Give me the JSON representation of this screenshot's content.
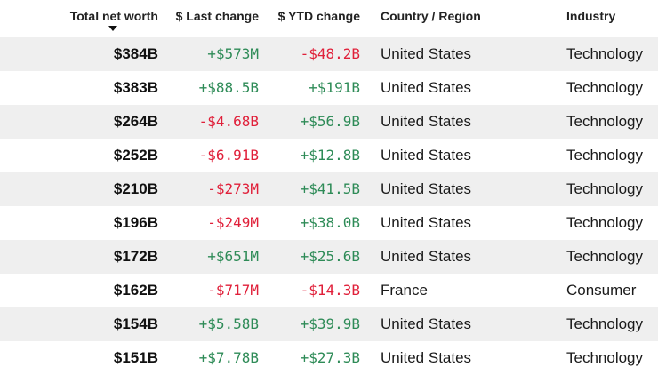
{
  "colors": {
    "positive": "#2e8b57",
    "negative": "#e0203a",
    "row_alt": "#efefef"
  },
  "header": {
    "net_worth": "Total net worth",
    "last_change": "$ Last change",
    "ytd_change": "$ YTD change",
    "country": "Country / Region",
    "industry": "Industry",
    "sort_icon": "sort-descending-icon"
  },
  "rows": [
    {
      "worth": "$384B",
      "last": "+$573M",
      "ytd": "-$48.2B",
      "country": "United States",
      "industry": "Technology"
    },
    {
      "worth": "$383B",
      "last": "+$88.5B",
      "ytd": "+$191B",
      "country": "United States",
      "industry": "Technology"
    },
    {
      "worth": "$264B",
      "last": "-$4.68B",
      "ytd": "+$56.9B",
      "country": "United States",
      "industry": "Technology"
    },
    {
      "worth": "$252B",
      "last": "-$6.91B",
      "ytd": "+$12.8B",
      "country": "United States",
      "industry": "Technology"
    },
    {
      "worth": "$210B",
      "last": "-$273M",
      "ytd": "+$41.5B",
      "country": "United States",
      "industry": "Technology"
    },
    {
      "worth": "$196B",
      "last": "-$249M",
      "ytd": "+$38.0B",
      "country": "United States",
      "industry": "Technology"
    },
    {
      "worth": "$172B",
      "last": "+$651M",
      "ytd": "+$25.6B",
      "country": "United States",
      "industry": "Technology"
    },
    {
      "worth": "$162B",
      "last": "-$717M",
      "ytd": "-$14.3B",
      "country": "France",
      "industry": "Consumer"
    },
    {
      "worth": "$154B",
      "last": "+$5.58B",
      "ytd": "+$39.9B",
      "country": "United States",
      "industry": "Technology"
    },
    {
      "worth": "$151B",
      "last": "+$7.78B",
      "ytd": "+$27.3B",
      "country": "United States",
      "industry": "Technology"
    }
  ]
}
